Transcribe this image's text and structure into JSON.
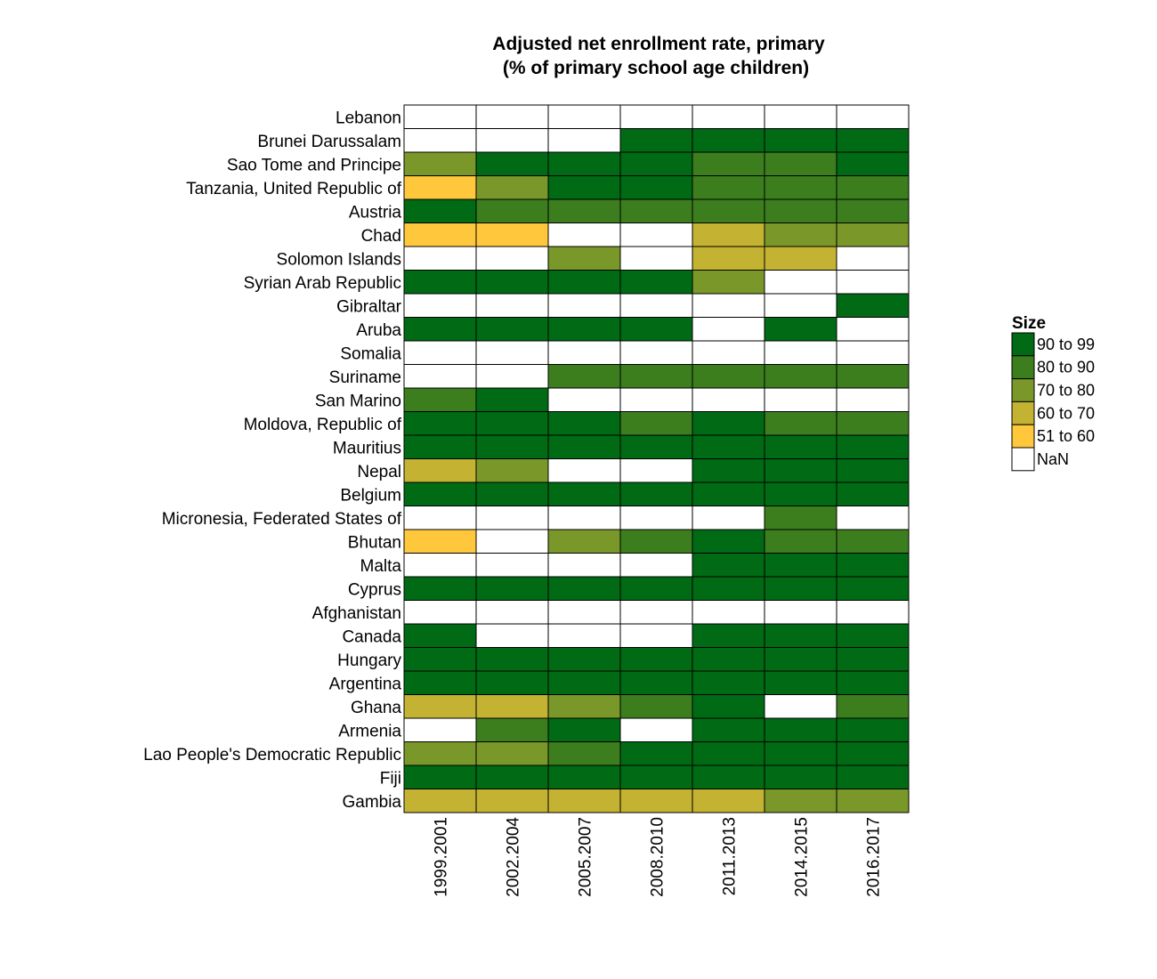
{
  "chart_data": {
    "type": "heatmap",
    "title_lines": [
      "Adjusted net enrollment rate, primary",
      "(% of primary school age children)"
    ],
    "columns": [
      "1999.2001",
      "2002.2004",
      "2005.2007",
      "2008.2010",
      "2011.2013",
      "2014.2015",
      "2016.2017"
    ],
    "rows": [
      "Lebanon",
      "Brunei Darussalam",
      "Sao Tome and Principe",
      "Tanzania, United Republic of",
      "Austria",
      "Chad",
      "Solomon Islands",
      "Syrian Arab Republic",
      "Gibraltar",
      "Aruba",
      "Somalia",
      "Suriname",
      "San Marino",
      "Moldova, Republic of",
      "Mauritius",
      "Nepal",
      "Belgium",
      "Micronesia, Federated States of",
      "Bhutan",
      "Malta",
      "Cyprus",
      "Afghanistan",
      "Canada",
      "Hungary",
      "Argentina",
      "Ghana",
      "Armenia",
      "Lao People's Democratic Republic",
      "Fiji",
      "Gambia"
    ],
    "cells": [
      [
        "NaN",
        "NaN",
        "NaN",
        "NaN",
        "NaN",
        "NaN",
        "NaN"
      ],
      [
        "NaN",
        "NaN",
        "NaN",
        "90 to 99",
        "90 to 99",
        "90 to 99",
        "90 to 99"
      ],
      [
        "70 to 80",
        "90 to 99",
        "90 to 99",
        "90 to 99",
        "80 to 90",
        "80 to 90",
        "90 to 99"
      ],
      [
        "51 to 60",
        "70 to 80",
        "90 to 99",
        "90 to 99",
        "80 to 90",
        "80 to 90",
        "80 to 90"
      ],
      [
        "90 to 99",
        "80 to 90",
        "80 to 90",
        "80 to 90",
        "80 to 90",
        "80 to 90",
        "80 to 90"
      ],
      [
        "51 to 60",
        "51 to 60",
        "NaN",
        "NaN",
        "60 to 70",
        "70 to 80",
        "70 to 80"
      ],
      [
        "NaN",
        "NaN",
        "70 to 80",
        "NaN",
        "60 to 70",
        "60 to 70",
        "NaN"
      ],
      [
        "90 to 99",
        "90 to 99",
        "90 to 99",
        "90 to 99",
        "70 to 80",
        "NaN",
        "NaN"
      ],
      [
        "NaN",
        "NaN",
        "NaN",
        "NaN",
        "NaN",
        "NaN",
        "90 to 99"
      ],
      [
        "90 to 99",
        "90 to 99",
        "90 to 99",
        "90 to 99",
        "NaN",
        "90 to 99",
        "NaN"
      ],
      [
        "NaN",
        "NaN",
        "NaN",
        "NaN",
        "NaN",
        "NaN",
        "NaN"
      ],
      [
        "NaN",
        "NaN",
        "80 to 90",
        "80 to 90",
        "80 to 90",
        "80 to 90",
        "80 to 90"
      ],
      [
        "80 to 90",
        "90 to 99",
        "NaN",
        "NaN",
        "NaN",
        "NaN",
        "NaN"
      ],
      [
        "90 to 99",
        "90 to 99",
        "90 to 99",
        "80 to 90",
        "90 to 99",
        "80 to 90",
        "80 to 90"
      ],
      [
        "90 to 99",
        "90 to 99",
        "90 to 99",
        "90 to 99",
        "90 to 99",
        "90 to 99",
        "90 to 99"
      ],
      [
        "60 to 70",
        "70 to 80",
        "NaN",
        "NaN",
        "90 to 99",
        "90 to 99",
        "90 to 99"
      ],
      [
        "90 to 99",
        "90 to 99",
        "90 to 99",
        "90 to 99",
        "90 to 99",
        "90 to 99",
        "90 to 99"
      ],
      [
        "NaN",
        "NaN",
        "NaN",
        "NaN",
        "NaN",
        "80 to 90",
        "NaN"
      ],
      [
        "51 to 60",
        "NaN",
        "70 to 80",
        "80 to 90",
        "90 to 99",
        "80 to 90",
        "80 to 90"
      ],
      [
        "NaN",
        "NaN",
        "NaN",
        "NaN",
        "90 to 99",
        "90 to 99",
        "90 to 99"
      ],
      [
        "90 to 99",
        "90 to 99",
        "90 to 99",
        "90 to 99",
        "90 to 99",
        "90 to 99",
        "90 to 99"
      ],
      [
        "NaN",
        "NaN",
        "NaN",
        "NaN",
        "NaN",
        "NaN",
        "NaN"
      ],
      [
        "90 to 99",
        "NaN",
        "NaN",
        "NaN",
        "90 to 99",
        "90 to 99",
        "90 to 99"
      ],
      [
        "90 to 99",
        "90 to 99",
        "90 to 99",
        "90 to 99",
        "90 to 99",
        "90 to 99",
        "90 to 99"
      ],
      [
        "90 to 99",
        "90 to 99",
        "90 to 99",
        "90 to 99",
        "90 to 99",
        "90 to 99",
        "90 to 99"
      ],
      [
        "60 to 70",
        "60 to 70",
        "70 to 80",
        "80 to 90",
        "90 to 99",
        "NaN",
        "80 to 90"
      ],
      [
        "NaN",
        "80 to 90",
        "90 to 99",
        "NaN",
        "90 to 99",
        "90 to 99",
        "90 to 99"
      ],
      [
        "70 to 80",
        "70 to 80",
        "80 to 90",
        "90 to 99",
        "90 to 99",
        "90 to 99",
        "90 to 99"
      ],
      [
        "90 to 99",
        "90 to 99",
        "90 to 99",
        "90 to 99",
        "90 to 99",
        "90 to 99",
        "90 to 99"
      ],
      [
        "60 to 70",
        "60 to 70",
        "60 to 70",
        "60 to 70",
        "60 to 70",
        "70 to 80",
        "70 to 80"
      ]
    ],
    "legend": {
      "title": "Size",
      "placement": "right",
      "items": [
        {
          "label": "90 to 99",
          "color": "#006a14"
        },
        {
          "label": "80 to 90",
          "color": "#3c7e1e"
        },
        {
          "label": "70 to 80",
          "color": "#7a972a"
        },
        {
          "label": "60 to 70",
          "color": "#c4b232"
        },
        {
          "label": "51 to 60",
          "color": "#ffc73c"
        },
        {
          "label": "NaN",
          "color": "#ffffff"
        }
      ]
    }
  }
}
